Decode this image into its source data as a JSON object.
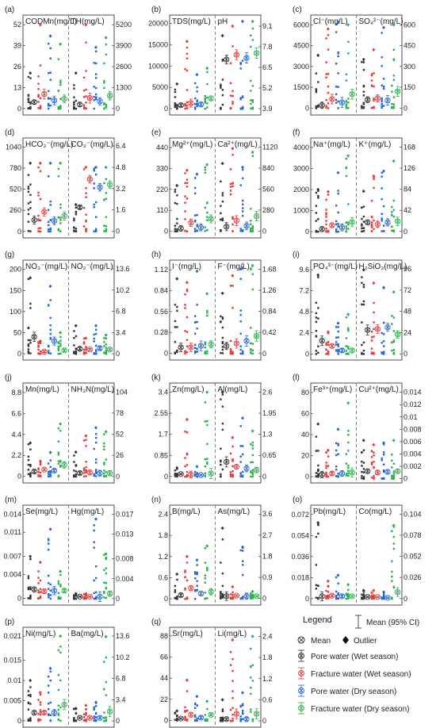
{
  "legend": {
    "title": "Legend",
    "mean_ci": "Mean (95% CI)",
    "mean": "Mean",
    "outlier": "Outlier",
    "groups": [
      {
        "label": "Pore water (Wet season)",
        "color": "#333333"
      },
      {
        "label": "Fracture water (Wet season)",
        "color": "#e8393a"
      },
      {
        "label": "Pore water (Dry season)",
        "color": "#2266dd"
      },
      {
        "label": "Fracture water (Dry season)",
        "color": "#27b34a"
      }
    ]
  },
  "chart_data": [
    {
      "type": "scatter",
      "panel": "(a)",
      "left": {
        "label": "CODMn(mg/L)",
        "ticks": [
          0,
          13,
          26,
          39,
          52
        ],
        "range": [
          -4,
          58
        ],
        "means": [
          4,
          9,
          5,
          6
        ],
        "maxes": [
          22,
          52,
          45,
          40
        ]
      },
      "right": {
        "label": "TH(mg/L)",
        "ticks": [
          0,
          1300,
          2600,
          3900,
          5200
        ],
        "range": [
          -400,
          5800
        ],
        "means": [
          250,
          650,
          450,
          800
        ],
        "maxes": [
          2200,
          5200,
          3800,
          4400
        ]
      }
    },
    {
      "type": "scatter",
      "panel": "(b)",
      "left": {
        "label": "TDS(mg/L)",
        "ticks": [
          0,
          5000,
          10000,
          15000,
          20000
        ],
        "range": [
          -1500,
          22000
        ],
        "means": [
          800,
          1300,
          1000,
          2400
        ],
        "maxes": [
          5800,
          15800,
          8000,
          9500
        ]
      },
      "right": {
        "label": "pH",
        "ticks": [
          3.9,
          5.2,
          6.5,
          7.8,
          9.1
        ],
        "range": [
          3.5,
          9.8
        ],
        "means": [
          7.0,
          7.3,
          7.1,
          7.4
        ],
        "maxes": [
          8.5,
          9.1,
          9.4,
          9.4
        ]
      }
    },
    {
      "type": "scatter",
      "panel": "(c)",
      "left": {
        "label": "Cl⁻(mg/L)",
        "ticks": [
          0,
          1500,
          3000,
          4500,
          6000
        ],
        "range": [
          -500,
          6700
        ],
        "means": [
          200,
          650,
          400,
          1000
        ],
        "maxes": [
          3800,
          5700,
          6200,
          6000
        ]
      },
      "right": {
        "label": "SO₄²⁻(mg/L)",
        "ticks": [
          0,
          150,
          300,
          450,
          600
        ],
        "range": [
          -50,
          670
        ],
        "means": [
          60,
          70,
          55,
          120
        ],
        "maxes": [
          350,
          420,
          580,
          600
        ]
      }
    },
    {
      "type": "scatter",
      "panel": "(d)",
      "left": {
        "label": "HCO₃⁻(mg/L)",
        "ticks": [
          0,
          260,
          520,
          780,
          1040
        ],
        "range": [
          -80,
          1150
        ],
        "means": [
          140,
          240,
          130,
          190
        ],
        "maxes": [
          840,
          840,
          840,
          840
        ]
      },
      "right": {
        "label": "CO₃⁻(mg/L)",
        "ticks": [
          0.0,
          1.6,
          3.2,
          4.8,
          6.4
        ],
        "range": [
          -0.5,
          7.0
        ],
        "means": [
          1.8,
          3.9,
          3.3,
          3.5
        ],
        "maxes": [
          2.0,
          4.8,
          4.8,
          4.8
        ]
      }
    },
    {
      "type": "scatter",
      "panel": "(e)",
      "left": {
        "label": "Mg²⁺(mg/L)",
        "ticks": [
          0,
          110,
          220,
          330,
          440
        ],
        "range": [
          -35,
          490
        ],
        "means": [
          15,
          45,
          20,
          65
        ],
        "maxes": [
          240,
          320,
          300,
          350
        ]
      },
      "right": {
        "label": "Ca²⁺(mg/L)",
        "ticks": [
          0,
          280,
          560,
          840,
          1120
        ],
        "range": [
          -90,
          1240
        ],
        "means": [
          60,
          140,
          70,
          200
        ],
        "maxes": [
          900,
          1100,
          850,
          1050
        ]
      }
    },
    {
      "type": "scatter",
      "panel": "(f)",
      "left": {
        "label": "Na⁺(mg/L)",
        "ticks": [
          0,
          1000,
          2000,
          3000,
          4000
        ],
        "range": [
          -300,
          4450
        ],
        "means": [
          120,
          300,
          200,
          450
        ],
        "maxes": [
          2000,
          1900,
          2800,
          3600
        ]
      },
      "right": {
        "label": "K⁺(mg/L)",
        "ticks": [
          0,
          42,
          84,
          126,
          168
        ],
        "range": [
          -13,
          186
        ],
        "means": [
          18,
          14,
          18,
          20
        ],
        "maxes": [
          80,
          110,
          120,
          140
        ]
      }
    },
    {
      "type": "scatter",
      "panel": "(g)",
      "left": {
        "label": "NO₃⁻(mg/L)",
        "ticks": [
          0,
          50,
          100,
          150,
          200
        ],
        "range": [
          -15,
          222
        ],
        "means": [
          40,
          5,
          30,
          8
        ],
        "maxes": [
          180,
          30,
          160,
          50
        ]
      },
      "right": {
        "label": "NO₂⁻(mg/L)",
        "ticks": [
          0.0,
          3.4,
          6.8,
          10.2,
          13.6
        ],
        "range": [
          -1.0,
          15.0
        ],
        "means": [
          0.8,
          0.7,
          0.9,
          0.7
        ],
        "maxes": [
          4.5,
          2.5,
          4.5,
          3.0
        ]
      }
    },
    {
      "type": "scatter",
      "panel": "(h)",
      "left": {
        "label": "I⁻(mg/L)",
        "ticks": [
          0.0,
          0.28,
          0.56,
          0.84,
          1.12
        ],
        "range": [
          -0.09,
          1.25
        ],
        "means": [
          0.08,
          0.08,
          0.1,
          0.12
        ],
        "maxes": [
          1.0,
          0.95,
          1.1,
          0.8
        ]
      },
      "right": {
        "label": "F⁻(mg/L)",
        "ticks": [
          0.0,
          0.42,
          0.84,
          1.26,
          1.68
        ],
        "range": [
          -0.13,
          1.86
        ],
        "means": [
          0.15,
          0.2,
          0.25,
          0.35
        ],
        "maxes": [
          1.2,
          1.55,
          1.7,
          1.75
        ]
      }
    },
    {
      "type": "scatter",
      "panel": "(i)",
      "left": {
        "label": "PO₄³⁻(mg/L)",
        "ticks": [
          0.0,
          2.4,
          4.8,
          7.2,
          9.6
        ],
        "range": [
          -0.7,
          10.7
        ],
        "means": [
          1.5,
          0.9,
          0.4,
          0.4
        ],
        "maxes": [
          9.0,
          2.5,
          3.5,
          4.5
        ]
      },
      "right": {
        "label": "H₂SiO₃(mg/L)",
        "ticks": [
          0,
          24,
          48,
          72,
          96
        ],
        "range": [
          -7,
          106
        ],
        "means": [
          27,
          28,
          30,
          22
        ],
        "maxes": [
          95,
          80,
          75,
          70
        ]
      }
    },
    {
      "type": "scatter",
      "panel": "(j)",
      "left": {
        "label": "Mn(mg/L)",
        "ticks": [
          0.0,
          2.2,
          4.4,
          6.6,
          8.8
        ],
        "range": [
          -0.7,
          9.8
        ],
        "means": [
          0.5,
          0.7,
          0.6,
          1.2
        ],
        "maxes": [
          3.5,
          1.6,
          2.5,
          5.5
        ]
      },
      "right": {
        "label": "NH₃N(mg/L)",
        "ticks": [
          0,
          26,
          52,
          78,
          104
        ],
        "range": [
          -8,
          115
        ],
        "means": [
          4,
          5,
          4,
          4
        ],
        "maxes": [
          30,
          50,
          60,
          55
        ]
      }
    },
    {
      "type": "scatter",
      "panel": "(k)",
      "left": {
        "label": "Zn(mg/L)",
        "ticks": [
          0.0,
          0.85,
          1.7,
          2.55,
          3.4
        ],
        "range": [
          -0.26,
          3.77
        ],
        "means": [
          0.1,
          0.08,
          0.06,
          0.12
        ],
        "maxes": [
          0.35,
          2.3,
          0.4,
          3.4
        ]
      },
      "right": {
        "label": "Al(mg/L)",
        "ticks": [
          0.0,
          0.65,
          1.3,
          1.95,
          2.6
        ],
        "range": [
          -0.2,
          2.88
        ],
        "means": [
          0.45,
          0.3,
          0.25,
          0.2
        ],
        "maxes": [
          2.6,
          1.2,
          1.8,
          1.4
        ]
      }
    },
    {
      "type": "scatter",
      "panel": "(l)",
      "left": {
        "label": "Fe³⁺(mg/L)",
        "ticks": [
          0,
          20,
          40,
          60,
          80
        ],
        "range": [
          -6,
          89
        ],
        "means": [
          2,
          3,
          3,
          4
        ],
        "maxes": [
          50,
          25,
          45,
          70
        ]
      },
      "right": {
        "label": "Cu²⁺(mg/L)",
        "ticks": [
          0.0,
          0.002,
          0.004,
          0.006,
          0.008,
          0.01,
          0.012,
          0.014
        ],
        "range": [
          -0.0007,
          0.0155
        ],
        "means": [
          0.0012,
          0.001,
          0.0011,
          0.0012
        ],
        "maxes": [
          0.0062,
          0.0055,
          0.0058,
          0.0062
        ]
      }
    },
    {
      "type": "scatter",
      "panel": "(m)",
      "left": {
        "label": "Se(mg/L)",
        "ticks": [
          0.0,
          0.004,
          0.007,
          0.011,
          0.014
        ],
        "range": [
          -0.0011,
          0.0155
        ],
        "means": [
          0.0015,
          0.0012,
          0.0013,
          0.0013
        ],
        "maxes": [
          0.007,
          0.006,
          0.0115,
          0.0045
        ]
      },
      "right": {
        "label": "Hg(mg/L)",
        "ticks": [
          0.0,
          0.004,
          0.008,
          0.013,
          0.017
        ],
        "range": [
          -0.0013,
          0.0188
        ],
        "means": [
          0.0004,
          0.0004,
          0.0004,
          0.001
        ],
        "maxes": [
          0.001,
          0.001,
          0.016,
          0.009
        ]
      }
    },
    {
      "type": "scatter",
      "panel": "(n)",
      "left": {
        "label": "B(mg/L)",
        "ticks": [
          0.0,
          0.6,
          1.2,
          1.8,
          2.4
        ],
        "range": [
          -0.18,
          2.66
        ],
        "means": [
          0.1,
          0.3,
          0.15,
          0.2
        ],
        "maxes": [
          0.7,
          1.2,
          1.1,
          1.5
        ]
      },
      "right": {
        "label": "As(mg/L)",
        "ticks": [
          0.0,
          0.9,
          1.8,
          2.7,
          3.6
        ],
        "range": [
          -0.28,
          3.98
        ],
        "means": [
          0.1,
          0.12,
          0.1,
          0.1
        ],
        "maxes": [
          3.0,
          0.5,
          2.2,
          0.3
        ]
      }
    },
    {
      "type": "scatter",
      "panel": "(o)",
      "left": {
        "label": "Pb(mg/L)",
        "ticks": [
          0.0,
          0.018,
          0.036,
          0.054,
          0.072
        ],
        "range": [
          -0.0055,
          0.08
        ],
        "means": [
          0.002,
          0.0025,
          0.002,
          0.002
        ],
        "maxes": [
          0.065,
          0.015,
          0.02,
          0.012
        ]
      },
      "right": {
        "label": "Co(mg/L)",
        "ticks": [
          0.0,
          0.026,
          0.052,
          0.078,
          0.104
        ],
        "range": [
          -0.008,
          0.115
        ],
        "means": [
          0.002,
          0.002,
          0.001,
          0.008
        ],
        "maxes": [
          0.01,
          0.01,
          0.008,
          0.09
        ]
      }
    },
    {
      "type": "scatter",
      "panel": "(p)",
      "left": {
        "label": "Ni(mg/L)",
        "ticks": [
          0.0,
          0.005,
          0.01,
          0.015,
          0.021
        ],
        "range": [
          -0.0016,
          0.0232
        ],
        "means": [
          0.002,
          0.002,
          0.002,
          0.004
        ],
        "maxes": [
          0.01,
          0.007,
          0.013,
          0.021
        ]
      },
      "right": {
        "label": "Ba(mg/L)",
        "ticks": [
          0.0,
          3.4,
          6.8,
          10.2,
          13.6
        ],
        "range": [
          -1.0,
          15.0
        ],
        "means": [
          0.5,
          0.5,
          0.5,
          1.5
        ],
        "maxes": [
          2.0,
          2.5,
          3.0,
          13.5
        ]
      }
    },
    {
      "type": "scatter",
      "panel": "(q)",
      "left": {
        "label": "Sr(mg/L)",
        "ticks": [
          0,
          22,
          44,
          66,
          88
        ],
        "range": [
          -7,
          97
        ],
        "means": [
          2,
          6,
          3,
          6
        ],
        "maxes": [
          10,
          42,
          25,
          20
        ]
      },
      "right": {
        "label": "Li(mg/L)",
        "ticks": [
          0.0,
          0.6,
          1.2,
          1.8,
          2.4
        ],
        "range": [
          -0.18,
          2.66
        ],
        "means": [
          0.05,
          0.2,
          0.05,
          0.2
        ],
        "maxes": [
          0.6,
          2.3,
          0.8,
          2.4
        ]
      }
    }
  ]
}
